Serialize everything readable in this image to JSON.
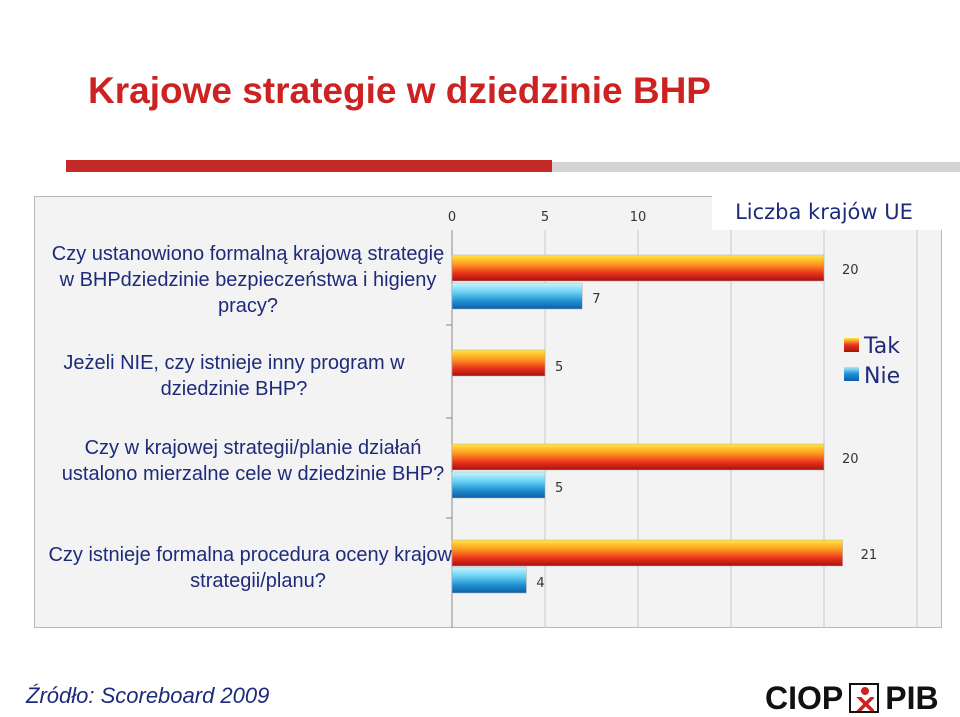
{
  "page": {
    "title": "Krajowe strategie w dziedzinie BHP",
    "source": "Źródło: Scoreboard 2009",
    "logo": {
      "left": "CIOP",
      "right": "PIB"
    }
  },
  "colors": {
    "title": "#cc2222",
    "text": "#1e2b7a",
    "tak_bar": "#e8341c",
    "nie_bar": "#1f8fd0"
  },
  "chart_data": {
    "type": "bar",
    "orientation": "horizontal",
    "title": "Liczba krajów UE",
    "x_ticks": [
      0,
      5,
      10
    ],
    "xlim": [
      0,
      22
    ],
    "grid": true,
    "legend_position": "right",
    "categories": [
      "Czy ustanowiono formalną krajową strategię w BHPdziedzinie bezpieczeństwa i higieny pracy?",
      "Jeżeli NIE, czy istnieje inny program w dziedzinie BHP?",
      "Czy w krajowej strategii/planie działań ustalono mierzalne cele w dziedzinie BHP?",
      "Czy istnieje formalna procedura oceny krajowej strategii/planu?"
    ],
    "series": [
      {
        "name": "Tak",
        "values": [
          20,
          5,
          20,
          21
        ]
      },
      {
        "name": "Nie",
        "values": [
          7,
          null,
          5,
          4
        ]
      }
    ]
  }
}
